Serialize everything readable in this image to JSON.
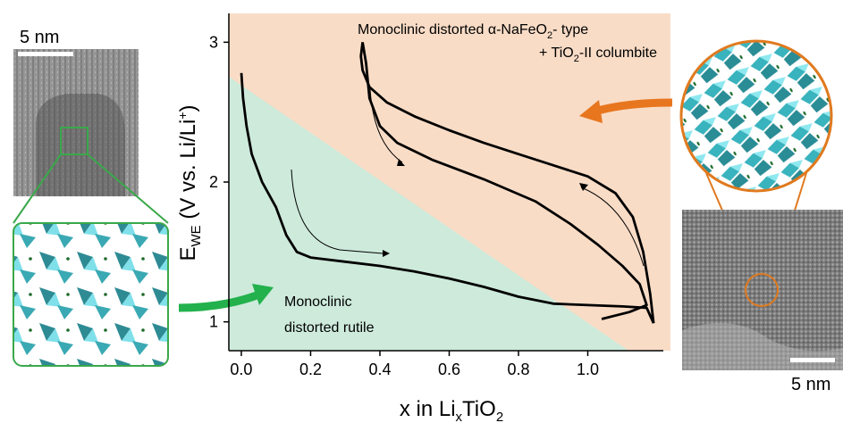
{
  "chart_data": {
    "type": "line",
    "xlabel": [
      "x in Li",
      "x",
      "TiO",
      "2"
    ],
    "ylabel": [
      "E",
      "WE",
      " (V vs. Li/Li",
      "+",
      ")"
    ],
    "annotations": {
      "upper": [
        [
          "Monoclinic distorted α-NaFeO",
          "2",
          "- type"
        ],
        [
          "+ TiO",
          "2",
          "-II columbite"
        ]
      ],
      "lower": [
        "Monoclinic",
        "distorted rutile"
      ]
    },
    "scale_bars": [
      "5 nm",
      "5 nm"
    ],
    "xlim": [
      -0.036,
      1.218
    ],
    "ylim": [
      0.8,
      3.2
    ],
    "xticks": [
      {
        "value": 0,
        "label": "0.0"
      },
      0.2,
      0.4,
      0.6,
      0.8,
      {
        "value": 1,
        "label": "1.0"
      }
    ],
    "yticks": [
      1,
      2,
      3
    ],
    "series": [
      {
        "color": "#000000",
        "x": [
          0.0,
          0.005,
          0.015,
          0.03,
          0.06,
          0.1,
          0.13,
          0.16,
          0.2,
          0.3,
          0.4,
          0.5,
          0.6,
          0.7,
          0.8,
          0.9,
          1.0,
          1.1,
          1.17,
          1.19
        ],
        "values": [
          2.78,
          2.6,
          2.4,
          2.2,
          2.0,
          1.82,
          1.62,
          1.5,
          1.46,
          1.43,
          1.4,
          1.36,
          1.31,
          1.25,
          1.18,
          1.13,
          1.12,
          1.11,
          1.1,
          0.99
        ]
      },
      {
        "color": "#000000",
        "x": [
          1.19,
          1.18,
          1.16,
          1.13,
          1.08,
          1.0,
          0.9,
          0.8,
          0.7,
          0.6,
          0.5,
          0.42,
          0.37,
          0.35,
          0.345,
          0.35
        ],
        "values": [
          0.99,
          1.2,
          1.5,
          1.75,
          1.92,
          2.04,
          2.12,
          2.2,
          2.28,
          2.37,
          2.47,
          2.57,
          2.68,
          2.8,
          2.9,
          3.0
        ]
      },
      {
        "color": "#000000",
        "x": [
          0.35,
          0.36,
          0.37,
          0.4,
          0.45,
          0.55,
          0.7,
          0.85,
          0.95,
          1.03,
          1.1,
          1.15,
          1.17,
          1.12,
          1.04
        ],
        "values": [
          3.0,
          2.85,
          2.6,
          2.4,
          2.28,
          2.16,
          2.02,
          1.86,
          1.7,
          1.55,
          1.4,
          1.27,
          1.12,
          1.07,
          1.02
        ]
      }
    ]
  }
}
